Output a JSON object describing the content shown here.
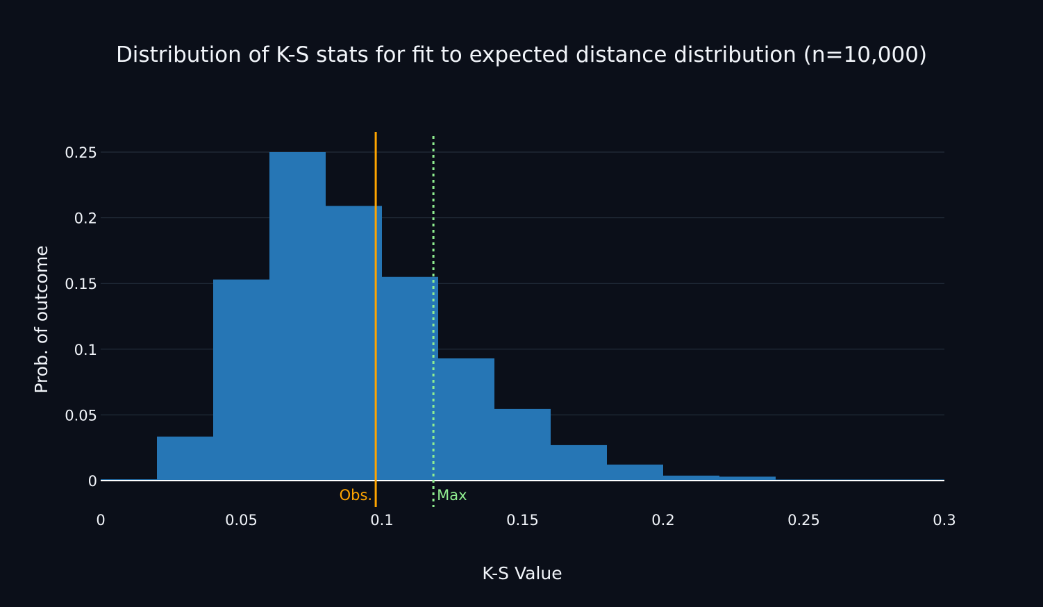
{
  "chart_data": {
    "type": "bar",
    "title": "Distribution of K-S stats for fit to expected distance distribution (n=10,000)",
    "xlabel": "K-S Value",
    "ylabel": "Prob. of outcome",
    "xlim": [
      0,
      0.3
    ],
    "ylim": [
      0,
      0.265
    ],
    "grid": true,
    "bin_width": 0.02,
    "bin_starts": [
      0,
      0.02,
      0.04,
      0.06,
      0.08,
      0.1,
      0.12,
      0.14,
      0.16,
      0.18,
      0.2,
      0.22,
      0.24,
      0.26,
      0.28
    ],
    "values": [
      0.001,
      0.0335,
      0.153,
      0.25,
      0.209,
      0.155,
      0.093,
      0.0545,
      0.027,
      0.0122,
      0.0038,
      0.003,
      0.0008,
      0.0008,
      0.0008
    ],
    "xticks": [
      {
        "v": 0,
        "label": "0"
      },
      {
        "v": 0.05,
        "label": "0.05"
      },
      {
        "v": 0.1,
        "label": "0.1"
      },
      {
        "v": 0.15,
        "label": "0.15"
      },
      {
        "v": 0.2,
        "label": "0.2"
      },
      {
        "v": 0.25,
        "label": "0.25"
      },
      {
        "v": 0.3,
        "label": "0.3"
      }
    ],
    "yticks": [
      {
        "v": 0,
        "label": "0"
      },
      {
        "v": 0.05,
        "label": "0.05"
      },
      {
        "v": 0.1,
        "label": "0.1"
      },
      {
        "v": 0.15,
        "label": "0.15"
      },
      {
        "v": 0.2,
        "label": "0.2"
      },
      {
        "v": 0.25,
        "label": "0.25"
      }
    ],
    "vlines": [
      {
        "x": 0.0978,
        "label": "Obs.",
        "color": "#ffa500",
        "style": "solid"
      },
      {
        "x": 0.1183,
        "label": "Max",
        "color": "#90ee90",
        "style": "dotted"
      }
    ],
    "colors": {
      "bar": "#2676b5",
      "background": "#0b0f19",
      "grid": "#283442",
      "text": "#f2f5fa"
    }
  }
}
